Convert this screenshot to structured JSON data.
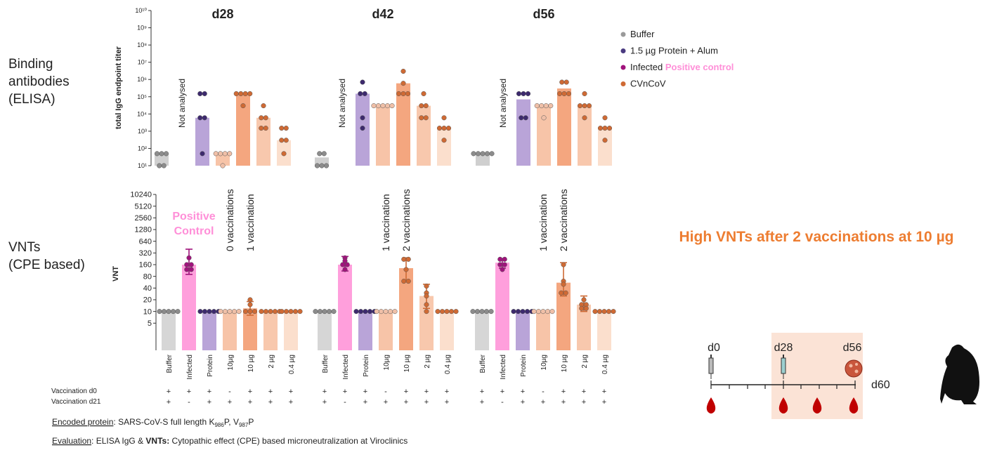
{
  "chart_data": [
    {
      "type": "bar",
      "scale": "log",
      "y_label": "total IgG endpoint titer",
      "ylim": [
        10,
        10000000000
      ],
      "yticks": [
        {
          "value": 10,
          "label": "10¹"
        },
        {
          "value": 100,
          "label": "10²"
        },
        {
          "value": 1000,
          "label": "10³"
        },
        {
          "value": 10000,
          "label": "10⁴"
        },
        {
          "value": 100000,
          "label": "10⁵"
        },
        {
          "value": 1000000,
          "label": "10⁶"
        },
        {
          "value": 10000000,
          "label": "10⁷"
        },
        {
          "value": 100000000,
          "label": "10⁸"
        },
        {
          "value": 1000000000,
          "label": "10⁹"
        },
        {
          "value": 10000000000,
          "label": "10¹⁰"
        }
      ],
      "bar_colors": [
        "#cfcfcf",
        "#ff9fdc",
        "#b9a4d8",
        "#f7c4a8",
        "#f4a67f",
        "#f8c8ad",
        "#fbdfcd"
      ],
      "point_colors": [
        "#8c8c8c",
        "#a0137c",
        "#3d2a6e",
        "#f0c0a8",
        "#cf6a34",
        "#cf6a34",
        "#cf6a34"
      ],
      "series": [
        {
          "name": "Buffer",
          "color": "#9a9a9a"
        },
        {
          "name": "1.5 µg Protein + Alum",
          "color": "#4a3a80"
        },
        {
          "name": "Infected",
          "highlight": "Positive control",
          "color": "#a0137c"
        },
        {
          "name": "CVnCoV",
          "color": "#cf6a34"
        }
      ],
      "groups": [
        {
          "name": "d28",
          "note": "Not analysed",
          "values": [
            50,
            null,
            6000,
            50,
            150000,
            6000,
            300
          ],
          "points": [
            [
              50,
              50,
              50,
              10,
              10
            ],
            [],
            [
              150000,
              150000,
              6000,
              6000,
              50
            ],
            [
              50,
              50,
              50,
              50,
              10
            ],
            [
              150000,
              150000,
              150000,
              150000,
              30000
            ],
            [
              30000,
              6000,
              6000,
              1500,
              1500
            ],
            [
              1500,
              1500,
              300,
              300,
              50
            ]
          ]
        },
        {
          "name": "d42",
          "note": "Not analysed",
          "values": [
            30,
            null,
            150000,
            30000,
            600000,
            30000,
            1500
          ],
          "points": [
            [
              50,
              50,
              10,
              10,
              10
            ],
            [],
            [
              700000,
              150000,
              150000,
              6000,
              1500
            ],
            [
              30000,
              30000,
              30000,
              30000,
              30000
            ],
            [
              3000000,
              600000,
              150000,
              150000,
              150000
            ],
            [
              150000,
              30000,
              30000,
              6000,
              6000
            ],
            [
              6000,
              1500,
              1500,
              1500,
              300
            ]
          ]
        },
        {
          "name": "d56",
          "note": "Not analysed",
          "values": [
            50,
            null,
            70000,
            30000,
            300000,
            30000,
            1500
          ],
          "points": [
            [
              50,
              50,
              50,
              50,
              50
            ],
            [],
            [
              150000,
              150000,
              150000,
              6000,
              6000
            ],
            [
              30000,
              30000,
              30000,
              30000,
              6000
            ],
            [
              700000,
              700000,
              150000,
              150000,
              150000
            ],
            [
              150000,
              30000,
              30000,
              30000,
              6000
            ],
            [
              6000,
              1500,
              1500,
              1500,
              300
            ]
          ]
        }
      ]
    },
    {
      "type": "bar",
      "scale": "log2",
      "y_label": "VNT",
      "ylim": [
        1,
        10240
      ],
      "yticks": [
        5,
        10,
        20,
        40,
        80,
        160,
        320,
        640,
        1280,
        2560,
        5120,
        10240
      ],
      "categories": [
        "Buffer",
        "Infected",
        "Protein",
        "10µg",
        "10 µg",
        "2 µg",
        "0.4 µg"
      ],
      "bar_colors": [
        "#d6d6d6",
        "#ff9fdc",
        "#b9a4d8",
        "#f7c4a8",
        "#f4a67f",
        "#f8c8ad",
        "#fbdfcd"
      ],
      "point_colors": [
        "#8c8c8c",
        "#a0137c",
        "#3d2a6e",
        "#f0c0a8",
        "#cf6a34",
        "#cf6a34",
        "#cf6a34"
      ],
      "positive_control_label": [
        "Positive",
        "Control"
      ],
      "vaccination_rows": [
        {
          "label": "Vaccination d0",
          "signs": [
            "+",
            "+",
            "+",
            "-",
            "+",
            "+",
            "+"
          ]
        },
        {
          "label": "Vaccination d21",
          "signs": [
            "+",
            "-",
            "+",
            "+",
            "+",
            "+",
            "+"
          ]
        }
      ],
      "groups": [
        {
          "notes": [
            "0 vaccinations",
            "1 vaccination"
          ],
          "values": [
            10,
            160,
            10,
            10,
            12,
            10,
            10
          ],
          "points": [
            [
              10,
              10,
              10,
              10,
              10
            ],
            [
              240,
              160,
              160,
              120,
              120
            ],
            [
              10,
              10,
              10,
              10,
              10
            ],
            [
              10,
              10,
              10,
              10,
              10
            ],
            [
              20,
              15,
              10,
              10,
              10
            ],
            [
              10,
              10,
              10,
              10,
              10
            ],
            [
              10,
              10,
              10,
              10,
              10
            ]
          ],
          "error_low": [
            null,
            90,
            null,
            null,
            8,
            null,
            null
          ],
          "error_high": [
            null,
            400,
            null,
            null,
            18,
            null,
            null
          ]
        },
        {
          "notes": [
            "1 vaccination",
            "2 vaccinations"
          ],
          "values": [
            10,
            160,
            10,
            10,
            130,
            25,
            10
          ],
          "points": [
            [
              10,
              10,
              10,
              10,
              10
            ],
            [
              240,
              200,
              160,
              160,
              120
            ],
            [
              10,
              10,
              10,
              10,
              10
            ],
            [
              10,
              10,
              10,
              10,
              10
            ],
            [
              220,
              220,
              120,
              60,
              60
            ],
            [
              45,
              30,
              25,
              15,
              10
            ],
            [
              10,
              10,
              10,
              10,
              10
            ]
          ],
          "error_low": [
            null,
            110,
            null,
            null,
            60,
            12,
            null
          ],
          "error_high": [
            null,
            260,
            null,
            null,
            240,
            50,
            null
          ]
        },
        {
          "notes": [
            "1 vaccination",
            "2 vaccinations"
          ],
          "values": [
            10,
            180,
            10,
            10,
            55,
            15,
            10
          ],
          "points": [
            [
              10,
              10,
              10,
              10,
              10
            ],
            [
              220,
              220,
              160,
              160,
              120
            ],
            [
              10,
              10,
              10,
              10,
              10
            ],
            [
              10,
              10,
              10,
              10,
              10
            ],
            [
              160,
              60,
              50,
              30,
              30
            ],
            [
              20,
              15,
              15,
              12,
              12
            ],
            [
              10,
              10,
              10,
              10,
              10
            ]
          ],
          "error_low": [
            null,
            130,
            null,
            null,
            25,
            10,
            null
          ],
          "error_high": [
            null,
            230,
            null,
            null,
            180,
            25,
            null
          ]
        }
      ]
    }
  ],
  "panel_labels": {
    "elisa": [
      "Binding",
      "antibodies",
      "(ELISA)"
    ],
    "vnt": [
      "VNTs",
      "(CPE based)"
    ]
  },
  "headline": "High VNTs after 2 vaccinations at 10 µg",
  "timeline": {
    "labels": [
      "d0",
      "d28",
      "d56",
      "d60"
    ]
  },
  "notes": [
    {
      "term": "Encoded protein",
      "parts": [
        ": SARS-CoV-S full length K",
        "986",
        "P, V",
        "987",
        "P"
      ]
    },
    {
      "term": "Evaluation",
      "parts": [
        ": ELISA IgG & ",
        "VNTs:",
        " Cytopathic effect (CPE) based microneutralization at Viroclinics"
      ]
    }
  ]
}
